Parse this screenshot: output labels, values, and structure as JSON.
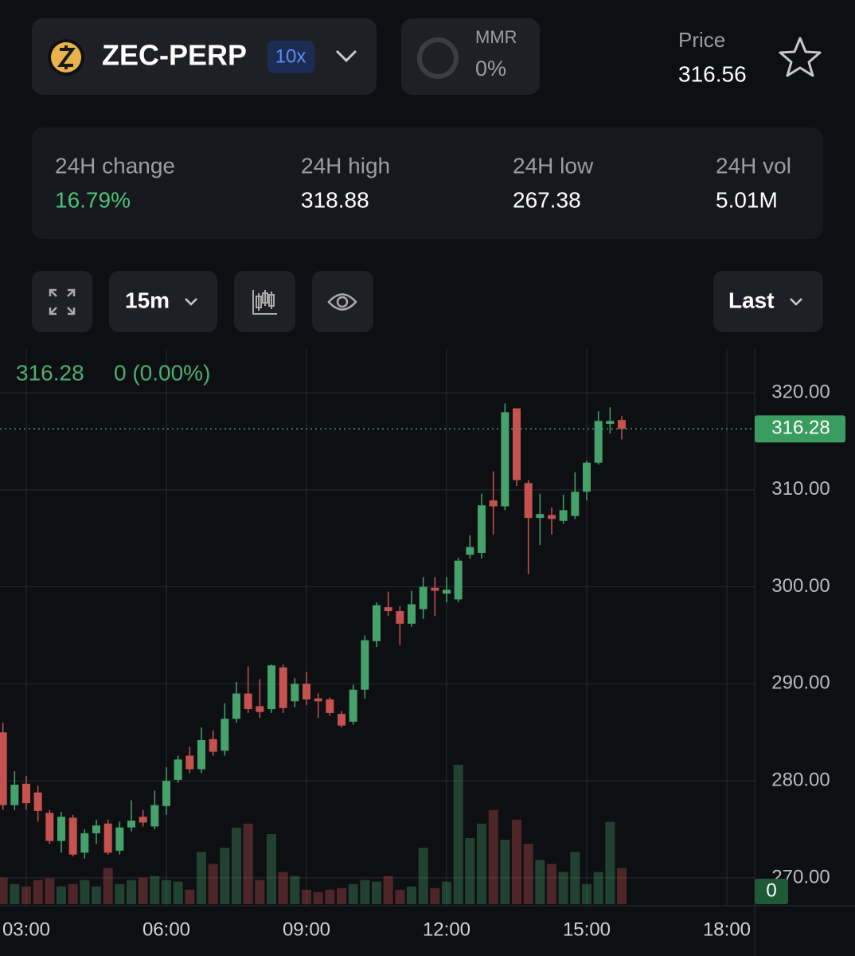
{
  "header": {
    "symbol": "ZEC-PERP",
    "leverage": "10x",
    "mmr_label": "MMR",
    "mmr_value": "0%",
    "price_label": "Price",
    "price_value": "316.56"
  },
  "stats": [
    {
      "label": "24H change",
      "value": "16.79%"
    },
    {
      "label": "24H high",
      "value": "318.88"
    },
    {
      "label": "24H low",
      "value": "267.38"
    },
    {
      "label": "24H vol",
      "value": "5.01M"
    }
  ],
  "toolbar": {
    "interval": "15m",
    "price_source": "Last"
  },
  "chart_data": {
    "type": "candlestick",
    "last_price": 316.28,
    "change_label": "0 (0.00%)",
    "up_color": "#45a26a",
    "down_color": "#c5524f",
    "grid": true,
    "x": [
      2.5,
      2.75,
      3,
      3.25,
      3.5,
      3.75,
      4,
      4.25,
      4.5,
      4.75,
      5,
      5.25,
      5.5,
      5.75,
      6,
      6.25,
      6.5,
      6.75,
      7,
      7.25,
      7.5,
      7.75,
      8,
      8.25,
      8.5,
      8.75,
      9,
      9.25,
      9.5,
      9.75,
      10,
      10.25,
      10.5,
      10.75,
      11,
      11.25,
      11.5,
      11.75,
      12,
      12.25,
      12.5,
      12.75,
      13,
      13.25,
      13.5,
      13.75,
      14,
      14.25,
      14.5,
      14.75,
      15,
      15.25,
      15.5,
      15.75
    ],
    "open": [
      285,
      277.5,
      279.7,
      278.8,
      276.7,
      273.8,
      276.2,
      272.6,
      274.6,
      275.6,
      272.8,
      275.2,
      276.3,
      275.3,
      277.4,
      280.1,
      282.6,
      281.2,
      284.3,
      283.1,
      286.4,
      289,
      287.7,
      287.4,
      291.7,
      288.2,
      290,
      288.5,
      288.4,
      286.9,
      286.1,
      289.4,
      294.4,
      297.9,
      297.5,
      296.2,
      297.7,
      299.9,
      299.3,
      298.7,
      303.3,
      303.5,
      308.9,
      308.3,
      318.4,
      310.7,
      307.1,
      307.4,
      306.8,
      307.3,
      309.8,
      312.8,
      316.8,
      317.2
    ],
    "high": [
      286,
      281,
      280.5,
      279.5,
      277,
      276.8,
      276.5,
      275,
      276,
      276,
      275.8,
      278,
      277,
      279,
      281.4,
      282.6,
      283.5,
      285.5,
      285.2,
      288,
      290.2,
      291.8,
      290.5,
      292,
      292,
      290.6,
      291.2,
      289,
      288.6,
      287.2,
      289.9,
      295,
      298.4,
      299.5,
      298,
      299.6,
      301,
      301,
      301,
      303,
      305.3,
      309.6,
      311.9,
      318.9,
      318.4,
      311,
      309.6,
      308.2,
      309.5,
      311.8,
      313,
      318.1,
      318.5,
      317.6
    ],
    "low": [
      277,
      277,
      277,
      275.8,
      273.5,
      272.6,
      272.2,
      272,
      273.5,
      272.4,
      272.4,
      274.8,
      275.3,
      275,
      276.5,
      279.8,
      280.8,
      280.8,
      282.6,
      282.6,
      286,
      287,
      286.5,
      287,
      287,
      287.6,
      287.8,
      286.5,
      286.7,
      285.5,
      285.8,
      288.5,
      293.8,
      297,
      294,
      295.9,
      296.7,
      297,
      298.4,
      298.4,
      302.9,
      302.9,
      305.4,
      307.9,
      310.4,
      301.3,
      304.3,
      305.4,
      306.5,
      307,
      308.9,
      312.6,
      315.8,
      315.2
    ],
    "close": [
      277.5,
      279.6,
      277.7,
      276.9,
      273.8,
      276.3,
      272.4,
      274.6,
      275.4,
      272.6,
      275.2,
      275.9,
      275.7,
      277.5,
      280,
      282.2,
      281.2,
      284.2,
      283,
      286.4,
      289,
      287.4,
      287.1,
      291.9,
      287.5,
      290,
      288.4,
      288.2,
      287,
      285.7,
      289.4,
      294.5,
      298.1,
      297.5,
      296.2,
      298.2,
      300,
      299.6,
      299.7,
      302.7,
      304.1,
      308.4,
      308.3,
      318,
      311,
      307.1,
      307.5,
      307,
      307.9,
      309.8,
      312.8,
      317.1,
      317.1,
      316.28
    ],
    "volume": [
      33,
      25,
      22,
      30,
      32,
      22,
      25,
      30,
      22,
      45,
      25,
      30,
      33,
      35,
      30,
      28,
      18,
      65,
      50,
      70,
      95,
      100,
      30,
      87,
      40,
      35,
      18,
      15,
      18,
      20,
      25,
      30,
      28,
      35,
      18,
      22,
      70,
      20,
      28,
      173,
      82,
      100,
      117,
      80,
      105,
      75,
      55,
      50,
      40,
      65,
      25,
      40,
      102,
      45
    ],
    "volume_ticks": [
      0
    ],
    "xlim": [
      2.4375,
      18.5966
    ],
    "xticks": [
      {
        "value": 3,
        "label": "03:00"
      },
      {
        "value": 6,
        "label": "06:00"
      },
      {
        "value": 9,
        "label": "09:00"
      },
      {
        "value": 12,
        "label": "12:00"
      },
      {
        "value": 15,
        "label": "15:00"
      },
      {
        "value": 18,
        "label": "18:00"
      }
    ],
    "ylim": [
      267.12,
      324.52
    ],
    "yticks": [
      {
        "value": 320,
        "label": "320.00"
      },
      {
        "value": 310,
        "label": "310.00"
      },
      {
        "value": 300,
        "label": "300.00"
      },
      {
        "value": 290,
        "label": "290.00"
      },
      {
        "value": 280,
        "label": "280.00"
      },
      {
        "value": 270,
        "label": "270.00"
      }
    ]
  }
}
